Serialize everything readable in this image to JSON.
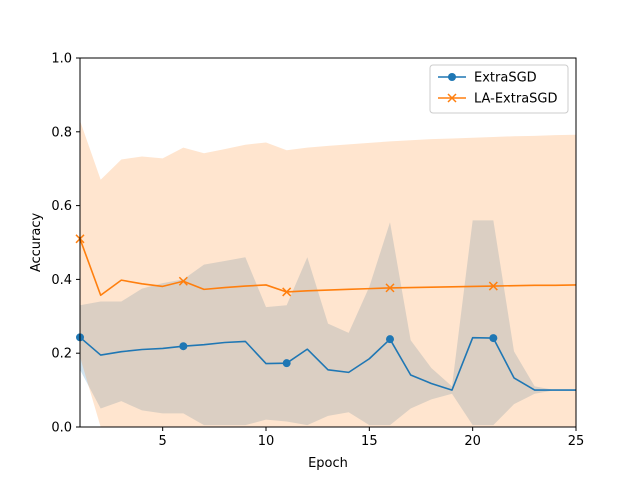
{
  "chart_data": {
    "type": "line",
    "title": "",
    "xlabel": "Epoch",
    "ylabel": "Accuracy",
    "xlim": [
      1,
      25
    ],
    "ylim": [
      0,
      1.0
    ],
    "xticks": [
      5,
      10,
      15,
      20,
      25
    ],
    "xtick_labels": [
      "5",
      "10",
      "15",
      "20",
      "25"
    ],
    "yticks": [
      0.0,
      0.2,
      0.4,
      0.6,
      0.8,
      1.0
    ],
    "ytick_labels": [
      "0.0",
      "0.2",
      "0.4",
      "0.6",
      "0.8",
      "1.0"
    ],
    "grid": false,
    "legend_position": "top-right",
    "x": [
      1,
      2,
      3,
      4,
      5,
      6,
      7,
      8,
      9,
      10,
      11,
      12,
      13,
      14,
      15,
      16,
      17,
      18,
      19,
      20,
      21,
      22,
      23,
      24,
      25
    ],
    "series": [
      {
        "name": "ExtraSGD",
        "color": "#1f77b4",
        "marker": "circle",
        "marker_every": [
          1,
          6,
          11,
          16,
          21
        ],
        "values": [
          0.243,
          0.195,
          0.204,
          0.21,
          0.213,
          0.219,
          0.223,
          0.229,
          0.232,
          0.172,
          0.173,
          0.211,
          0.155,
          0.148,
          0.185,
          0.238,
          0.141,
          0.118,
          0.1,
          0.242,
          0.241,
          0.133,
          0.1,
          0.1,
          0.1
        ],
        "lower": [
          0.155,
          0.05,
          0.07,
          0.045,
          0.037,
          0.037,
          0.005,
          0.005,
          0.005,
          0.02,
          0.015,
          0.005,
          0.03,
          0.04,
          0.005,
          0.005,
          0.05,
          0.075,
          0.09,
          0.005,
          0.005,
          0.062,
          0.09,
          0.1,
          0.1
        ],
        "upper": [
          0.33,
          0.34,
          0.34,
          0.375,
          0.39,
          0.4,
          0.44,
          0.45,
          0.46,
          0.325,
          0.33,
          0.46,
          0.28,
          0.255,
          0.38,
          0.555,
          0.235,
          0.16,
          0.11,
          0.56,
          0.56,
          0.205,
          0.11,
          0.1,
          0.1
        ]
      },
      {
        "name": "LA-ExtraSGD",
        "color": "#ff7f0e",
        "marker": "x",
        "marker_every": [
          1,
          6,
          11,
          16,
          21
        ],
        "values": [
          0.51,
          0.357,
          0.398,
          0.388,
          0.381,
          0.395,
          0.373,
          0.378,
          0.382,
          0.385,
          0.366,
          0.369,
          0.371,
          0.373,
          0.375,
          0.377,
          0.378,
          0.379,
          0.38,
          0.381,
          0.382,
          0.383,
          0.384,
          0.384,
          0.385
        ],
        "lower": [
          0.19,
          0.0,
          0.0,
          0.0,
          0.0,
          0.0,
          0.0,
          0.0,
          0.0,
          0.0,
          0.0,
          0.0,
          0.0,
          0.0,
          0.0,
          0.0,
          0.0,
          0.0,
          0.0,
          0.0,
          0.0,
          0.0,
          0.0,
          0.0,
          0.0
        ],
        "upper": [
          0.83,
          0.67,
          0.725,
          0.733,
          0.728,
          0.757,
          0.742,
          0.753,
          0.765,
          0.771,
          0.75,
          0.757,
          0.762,
          0.766,
          0.77,
          0.774,
          0.777,
          0.78,
          0.782,
          0.784,
          0.786,
          0.788,
          0.789,
          0.791,
          0.792
        ]
      }
    ]
  }
}
